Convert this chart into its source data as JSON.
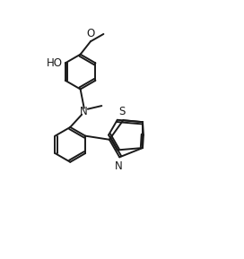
{
  "background_color": "#ffffff",
  "line_color": "#1a1a1a",
  "line_width": 1.4,
  "font_size": 8.5,
  "figsize": [
    2.72,
    2.89
  ],
  "dpi": 100,
  "xlim": [
    -0.5,
    4.5
  ],
  "ylim": [
    -0.5,
    5.0
  ]
}
